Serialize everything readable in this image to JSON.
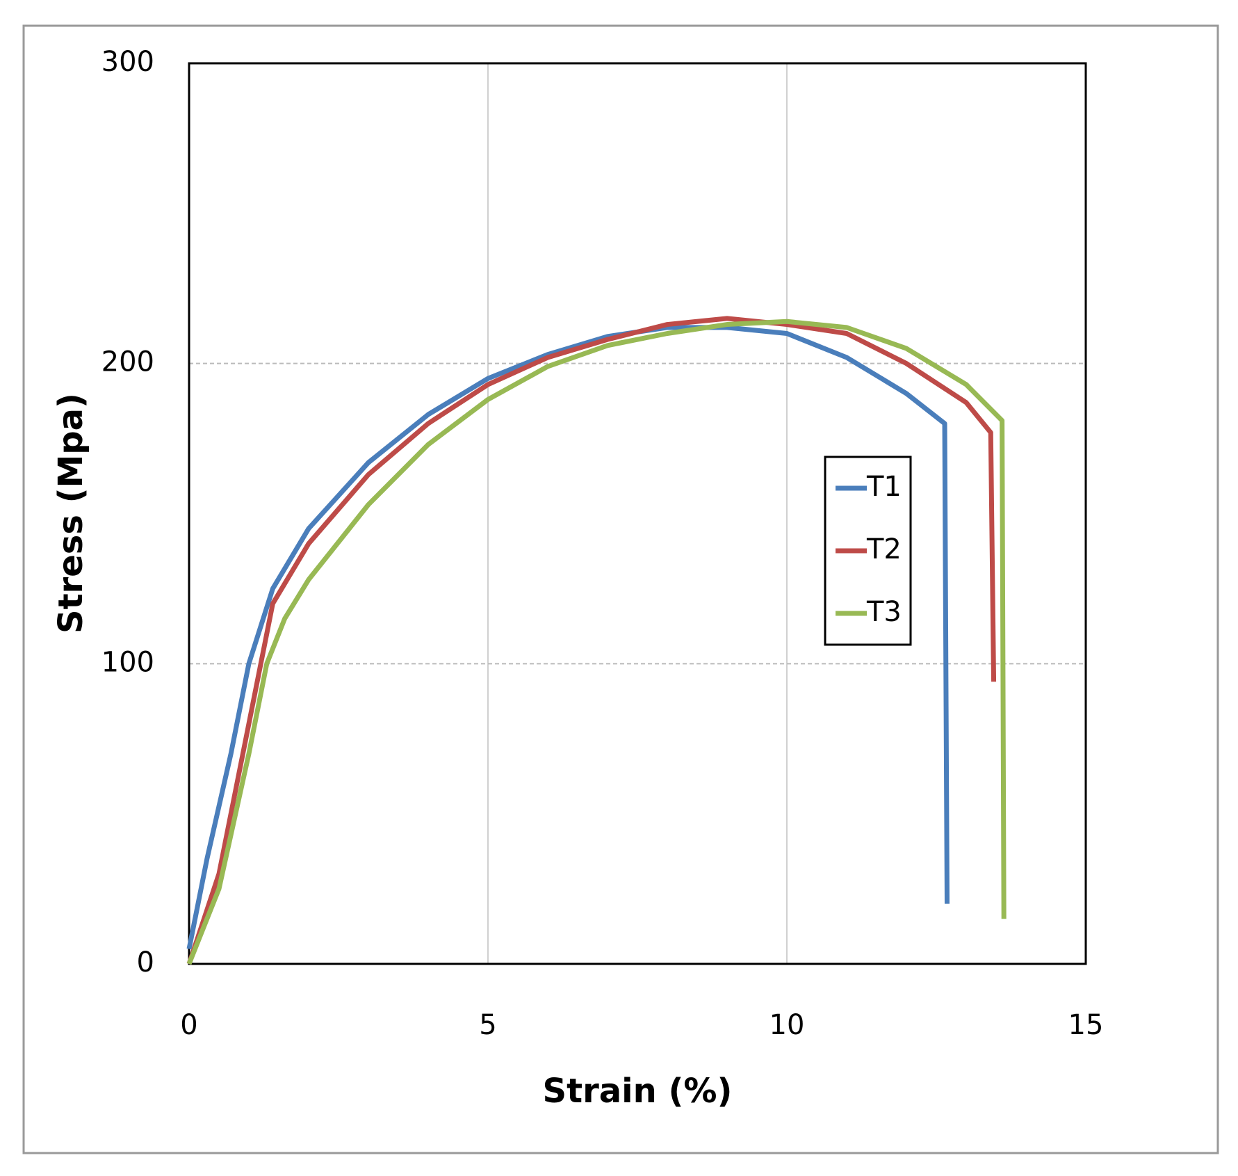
{
  "chart_data": {
    "type": "line",
    "xlabel": "Strain (%)",
    "ylabel": "Stress (Mpa)",
    "xlim": [
      0,
      15
    ],
    "ylim": [
      0,
      300
    ],
    "xticks": [
      0,
      5,
      10,
      15
    ],
    "yticks": [
      0,
      100,
      200,
      300
    ],
    "grid": true,
    "legend": "right",
    "series": [
      {
        "name": "T1",
        "color": "#4a7ebb",
        "x": [
          0,
          0.3,
          0.7,
          1.0,
          1.4,
          2,
          3,
          4,
          5,
          6,
          7,
          8,
          9,
          10,
          11,
          12,
          12.64,
          12.68
        ],
        "values": [
          5,
          35,
          70,
          100,
          125,
          145,
          167,
          183,
          195,
          203,
          209,
          212,
          212,
          210,
          202,
          190,
          180,
          20
        ]
      },
      {
        "name": "T2",
        "color": "#be4b48",
        "x": [
          0,
          0.5,
          1.0,
          1.4,
          2,
          3,
          4,
          5,
          6,
          7,
          8,
          9,
          10,
          11,
          12,
          13,
          13.41,
          13.46
        ],
        "values": [
          0,
          30,
          80,
          120,
          140,
          163,
          180,
          193,
          202,
          208,
          213,
          215,
          213,
          210,
          200,
          187,
          177,
          94
        ]
      },
      {
        "name": "T3",
        "color": "#98b954",
        "x": [
          0,
          0.5,
          1.0,
          1.3,
          1.6,
          2,
          3,
          4,
          5,
          6,
          7,
          8,
          9,
          10,
          11,
          12,
          13,
          13.6,
          13.63
        ],
        "values": [
          0,
          25,
          70,
          100,
          115,
          128,
          153,
          173,
          188,
          199,
          206,
          210,
          213,
          214,
          212,
          205,
          193,
          181,
          15
        ]
      }
    ]
  }
}
